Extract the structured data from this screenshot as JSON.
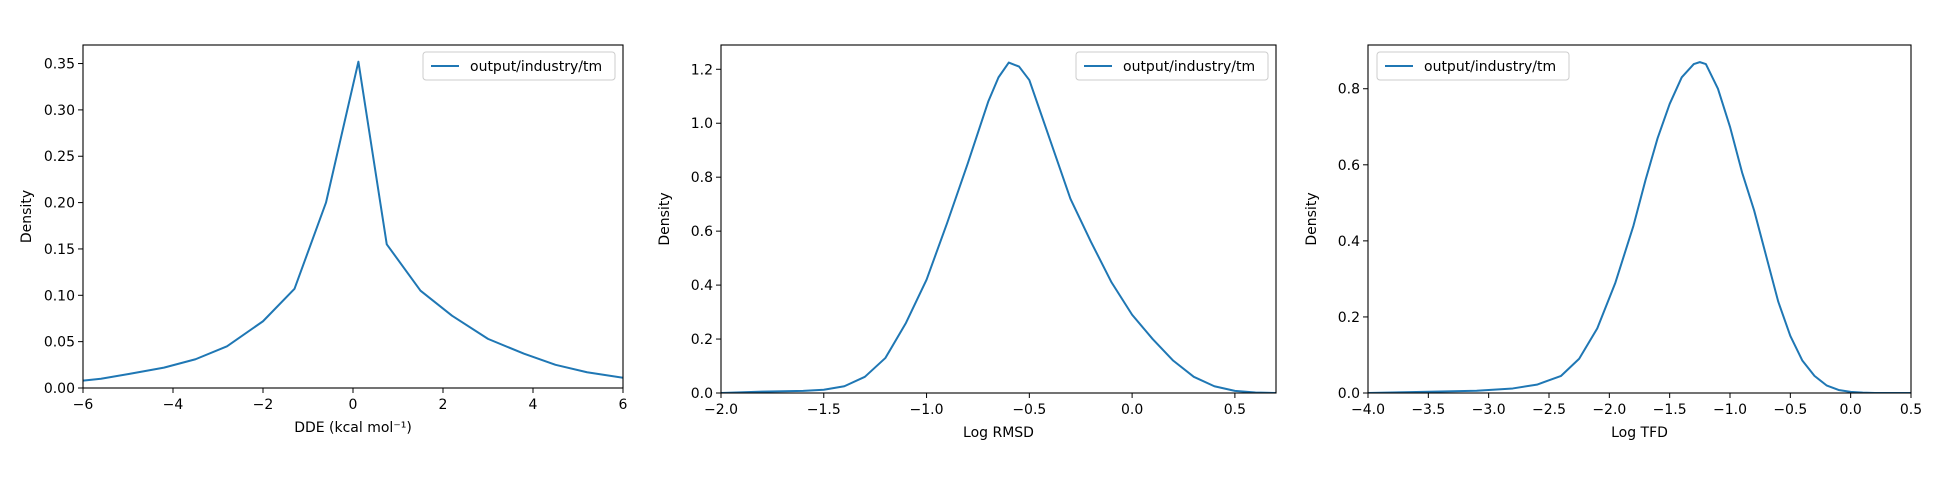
{
  "chart_data": [
    {
      "type": "line",
      "xlabel": "DDE (kcal mol⁻¹)",
      "ylabel": "Density",
      "xlim": [
        -6,
        6
      ],
      "ylim": [
        0,
        0.37
      ],
      "xticks": [
        -6,
        -4,
        -2,
        0,
        2,
        4,
        6
      ],
      "xtick_labels": [
        "−6",
        "−4",
        "−2",
        "0",
        "2",
        "4",
        "6"
      ],
      "yticks": [
        0,
        0.05,
        0.1,
        0.15,
        0.2,
        0.25,
        0.3,
        0.35
      ],
      "ytick_labels": [
        "0.00",
        "0.05",
        "0.10",
        "0.15",
        "0.20",
        "0.25",
        "0.30",
        "0.35"
      ],
      "legend_position": "top-right",
      "grid": false,
      "color": "#1f77b4",
      "series": [
        {
          "name": "output/industry/tm",
          "x": [
            -6.0,
            -5.6,
            -5.0,
            -4.2,
            -3.5,
            -2.8,
            -2.0,
            -1.3,
            -0.6,
            0.12,
            0.75,
            1.5,
            2.2,
            3.0,
            3.8,
            4.5,
            5.2,
            6.0
          ],
          "y": [
            0.008,
            0.01,
            0.015,
            0.022,
            0.031,
            0.045,
            0.072,
            0.107,
            0.2,
            0.352,
            0.155,
            0.105,
            0.078,
            0.053,
            0.037,
            0.025,
            0.017,
            0.011
          ]
        }
      ]
    },
    {
      "type": "line",
      "xlabel": "Log RMSD",
      "ylabel": "Density",
      "xlim": [
        -2.0,
        0.7
      ],
      "ylim": [
        0,
        1.29
      ],
      "xticks": [
        -2.0,
        -1.5,
        -1.0,
        -0.5,
        0.0,
        0.5
      ],
      "xtick_labels": [
        "−2.0",
        "−1.5",
        "−1.0",
        "−0.5",
        "0.0",
        "0.5"
      ],
      "yticks": [
        0,
        0.2,
        0.4,
        0.6,
        0.8,
        1.0,
        1.2
      ],
      "ytick_labels": [
        "0.0",
        "0.2",
        "0.4",
        "0.6",
        "0.8",
        "1.0",
        "1.2"
      ],
      "legend_position": "top-right",
      "grid": false,
      "color": "#1f77b4",
      "series": [
        {
          "name": "output/industry/tm",
          "x": [
            -2.0,
            -1.8,
            -1.6,
            -1.5,
            -1.4,
            -1.3,
            -1.2,
            -1.1,
            -1.0,
            -0.9,
            -0.8,
            -0.7,
            -0.65,
            -0.6,
            -0.55,
            -0.5,
            -0.45,
            -0.4,
            -0.3,
            -0.2,
            -0.1,
            0.0,
            0.1,
            0.2,
            0.3,
            0.4,
            0.5,
            0.6,
            0.7
          ],
          "y": [
            0.0,
            0.005,
            0.008,
            0.012,
            0.025,
            0.06,
            0.13,
            0.26,
            0.42,
            0.63,
            0.85,
            1.08,
            1.17,
            1.225,
            1.21,
            1.16,
            1.05,
            0.94,
            0.72,
            0.56,
            0.41,
            0.29,
            0.2,
            0.12,
            0.06,
            0.025,
            0.008,
            0.002,
            0.0
          ]
        }
      ]
    },
    {
      "type": "line",
      "xlabel": "Log TFD",
      "ylabel": "Density",
      "xlim": [
        -4.0,
        0.5
      ],
      "ylim": [
        0,
        0.915
      ],
      "xticks": [
        -4.0,
        -3.5,
        -3.0,
        -2.5,
        -2.0,
        -1.5,
        -1.0,
        -0.5,
        0.0,
        0.5
      ],
      "xtick_labels": [
        "−4.0",
        "−3.5",
        "−3.0",
        "−2.5",
        "−2.0",
        "−1.5",
        "−1.0",
        "−0.5",
        "0.0",
        "0.5"
      ],
      "yticks": [
        0,
        0.2,
        0.4,
        0.6,
        0.8
      ],
      "ytick_labels": [
        "0.0",
        "0.2",
        "0.4",
        "0.6",
        "0.8"
      ],
      "legend_position": "top-left",
      "grid": false,
      "color": "#1f77b4",
      "series": [
        {
          "name": "output/industry/tm",
          "x": [
            -4.0,
            -3.7,
            -3.4,
            -3.1,
            -2.8,
            -2.6,
            -2.4,
            -2.25,
            -2.1,
            -1.95,
            -1.8,
            -1.7,
            -1.6,
            -1.5,
            -1.4,
            -1.3,
            -1.25,
            -1.2,
            -1.1,
            -1.0,
            -0.9,
            -0.8,
            -0.7,
            -0.6,
            -0.5,
            -0.4,
            -0.3,
            -0.2,
            -0.1,
            0.0,
            0.1,
            0.2,
            0.3,
            0.5
          ],
          "y": [
            0.0,
            0.002,
            0.004,
            0.006,
            0.012,
            0.022,
            0.045,
            0.09,
            0.17,
            0.29,
            0.44,
            0.56,
            0.67,
            0.76,
            0.83,
            0.865,
            0.87,
            0.865,
            0.8,
            0.7,
            0.58,
            0.48,
            0.36,
            0.24,
            0.15,
            0.085,
            0.045,
            0.02,
            0.008,
            0.003,
            0.001,
            0.0,
            0.0,
            0.0
          ]
        }
      ]
    }
  ]
}
